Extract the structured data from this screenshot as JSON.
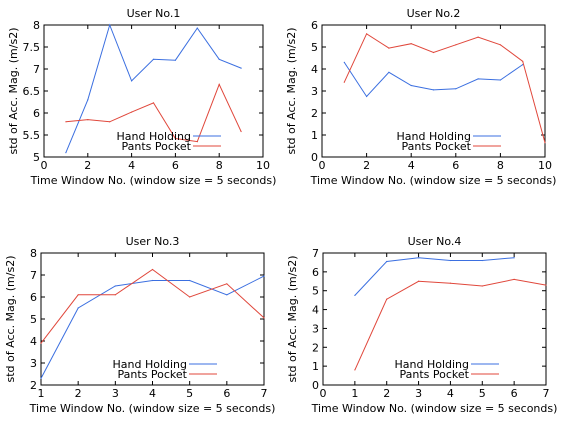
{
  "chart_data": [
    {
      "type": "line",
      "title": "User No.1",
      "xlabel": "Time Window No. (window size = 5 seconds)",
      "ylabel": "std of Acc. Mag. (m/s2)",
      "xlim": [
        0,
        10
      ],
      "ylim": [
        5,
        8
      ],
      "xticks": [
        "0",
        "2",
        "4",
        "6",
        "8",
        "10"
      ],
      "yticks": [
        "5",
        "5.5",
        "6",
        "6.5",
        "7",
        "7.5",
        "8"
      ],
      "legend_position": "lower-center",
      "series": [
        {
          "name": "Hand Holding",
          "color": "#3b6fe0",
          "x": [
            1,
            2,
            3,
            4,
            5,
            6,
            7,
            8,
            9
          ],
          "y": [
            5.1,
            6.3,
            8.0,
            6.73,
            7.22,
            7.2,
            7.93,
            7.22,
            7.02
          ]
        },
        {
          "name": "Pants Pocket",
          "color": "#e0473b",
          "x": [
            1,
            2,
            3,
            4,
            5,
            6,
            7,
            8,
            9
          ],
          "y": [
            5.8,
            5.85,
            5.8,
            6.02,
            6.23,
            5.42,
            5.35,
            6.65,
            5.58
          ]
        }
      ]
    },
    {
      "type": "line",
      "title": "User No.2",
      "xlabel": "Time Window No. (window size = 5 seconds)",
      "ylabel": "std of Acc. Mag. (m/s2)",
      "xlim": [
        0,
        10
      ],
      "ylim": [
        0,
        6
      ],
      "xticks": [
        "0",
        "2",
        "4",
        "6",
        "8",
        "10"
      ],
      "yticks": [
        "0",
        "1",
        "2",
        "3",
        "4",
        "5",
        "6"
      ],
      "legend_position": "lower-right",
      "series": [
        {
          "name": "Hand Holding",
          "color": "#3b6fe0",
          "x": [
            1,
            2,
            3,
            4,
            5,
            6,
            7,
            8,
            9
          ],
          "y": [
            4.3,
            2.75,
            3.85,
            3.25,
            3.05,
            3.1,
            3.55,
            3.5,
            4.2
          ]
        },
        {
          "name": "Pants Pocket",
          "color": "#e0473b",
          "x": [
            1,
            2,
            3,
            4,
            5,
            6,
            7,
            8,
            9,
            10
          ],
          "y": [
            3.4,
            5.6,
            4.95,
            5.15,
            4.75,
            5.1,
            5.45,
            5.1,
            4.35,
            0.65
          ]
        }
      ]
    },
    {
      "type": "line",
      "title": "User No.3",
      "xlabel": "Time Window No. (window size = 5 seconds)",
      "ylabel": "std of Acc. Mag. (m/s2)",
      "xlim": [
        1,
        7
      ],
      "ylim": [
        2,
        8
      ],
      "xticks": [
        "1",
        "2",
        "3",
        "4",
        "5",
        "6",
        "7"
      ],
      "yticks": [
        "2",
        "3",
        "4",
        "5",
        "6",
        "7",
        "8"
      ],
      "legend_position": "lower-center",
      "series": [
        {
          "name": "Hand Holding",
          "color": "#3b6fe0",
          "x": [
            1,
            2,
            3,
            4,
            5,
            6,
            7
          ],
          "y": [
            2.3,
            5.5,
            6.5,
            6.75,
            6.75,
            6.1,
            6.95
          ]
        },
        {
          "name": "Pants Pocket",
          "color": "#e0473b",
          "x": [
            1,
            2,
            3,
            4,
            5,
            6,
            7
          ],
          "y": [
            3.9,
            6.1,
            6.1,
            7.25,
            6.0,
            6.6,
            5.05
          ]
        }
      ]
    },
    {
      "type": "line",
      "title": "User No.4",
      "xlabel": "Time Window No. (window size = 5 seconds)",
      "ylabel": "std of Acc. Mag. (m/s2)",
      "xlim": [
        0,
        7
      ],
      "ylim": [
        0,
        7
      ],
      "xticks": [
        "0",
        "1",
        "2",
        "3",
        "4",
        "5",
        "6",
        "7"
      ],
      "yticks": [
        "0",
        "1",
        "2",
        "3",
        "4",
        "5",
        "6",
        "7"
      ],
      "legend_position": "lower-center",
      "series": [
        {
          "name": "Hand Holding",
          "color": "#3b6fe0",
          "x": [
            1,
            2,
            3,
            4,
            5,
            6
          ],
          "y": [
            4.75,
            6.55,
            6.75,
            6.6,
            6.6,
            6.75
          ]
        },
        {
          "name": "Pants Pocket",
          "color": "#e0473b",
          "x": [
            1,
            2,
            3,
            4,
            5,
            6,
            7
          ],
          "y": [
            0.8,
            4.55,
            5.5,
            5.4,
            5.25,
            5.6,
            5.3
          ]
        }
      ]
    }
  ]
}
